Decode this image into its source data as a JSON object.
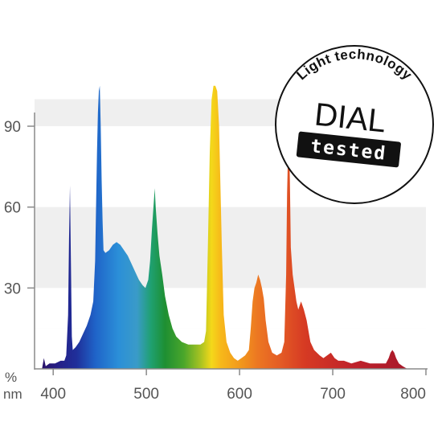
{
  "chart_data": {
    "type": "area",
    "title": "",
    "xlabel": "nm",
    "ylabel": "%",
    "xlim": [
      380,
      800
    ],
    "ylim": [
      0,
      107
    ],
    "x_ticks": [
      400,
      500,
      600,
      700,
      800
    ],
    "y_ticks": [
      30,
      60,
      90
    ],
    "grid": "alternating horizontal bands",
    "color_fill": "wavelength spectrum (violet to red)",
    "series": [
      {
        "points": [
          [
            388,
            0
          ],
          [
            390,
            4
          ],
          [
            392,
            1
          ],
          [
            396,
            2
          ],
          [
            402,
            2
          ],
          [
            408,
            3
          ],
          [
            412,
            3
          ],
          [
            414,
            5
          ],
          [
            416,
            20
          ],
          [
            417,
            48
          ],
          [
            418,
            68
          ],
          [
            419,
            40
          ],
          [
            420,
            12
          ],
          [
            421,
            7
          ],
          [
            424,
            8
          ],
          [
            428,
            10
          ],
          [
            432,
            13
          ],
          [
            436,
            16
          ],
          [
            440,
            20
          ],
          [
            443,
            25
          ],
          [
            445,
            40
          ],
          [
            446,
            60
          ],
          [
            447,
            80
          ],
          [
            448,
            95
          ],
          [
            449,
            103
          ],
          [
            450,
            105
          ],
          [
            451,
            90
          ],
          [
            452,
            70
          ],
          [
            453,
            55
          ],
          [
            454,
            44
          ],
          [
            456,
            43
          ],
          [
            460,
            44
          ],
          [
            464,
            46
          ],
          [
            468,
            47
          ],
          [
            472,
            46
          ],
          [
            476,
            44
          ],
          [
            480,
            42
          ],
          [
            484,
            39
          ],
          [
            488,
            36
          ],
          [
            492,
            33
          ],
          [
            496,
            31
          ],
          [
            499,
            30
          ],
          [
            502,
            33
          ],
          [
            504,
            40
          ],
          [
            506,
            52
          ],
          [
            508,
            62
          ],
          [
            509,
            67
          ],
          [
            510,
            60
          ],
          [
            512,
            50
          ],
          [
            514,
            42
          ],
          [
            517,
            35
          ],
          [
            520,
            27
          ],
          [
            524,
            20
          ],
          [
            528,
            15
          ],
          [
            532,
            12
          ],
          [
            538,
            10
          ],
          [
            545,
            9
          ],
          [
            552,
            9
          ],
          [
            558,
            9
          ],
          [
            562,
            10
          ],
          [
            564,
            14
          ],
          [
            566,
            45
          ],
          [
            568,
            80
          ],
          [
            570,
            100
          ],
          [
            572,
            105
          ],
          [
            574,
            105
          ],
          [
            576,
            103
          ],
          [
            578,
            90
          ],
          [
            579,
            75
          ],
          [
            581,
            45
          ],
          [
            583,
            20
          ],
          [
            586,
            10
          ],
          [
            590,
            6
          ],
          [
            594,
            4
          ],
          [
            598,
            3
          ],
          [
            602,
            4
          ],
          [
            606,
            5
          ],
          [
            610,
            7
          ],
          [
            612,
            15
          ],
          [
            614,
            25
          ],
          [
            616,
            30
          ],
          [
            618,
            32
          ],
          [
            620,
            35
          ],
          [
            622,
            33
          ],
          [
            624,
            30
          ],
          [
            626,
            26
          ],
          [
            628,
            18
          ],
          [
            631,
            10
          ],
          [
            635,
            6
          ],
          [
            640,
            5
          ],
          [
            645,
            6
          ],
          [
            648,
            10
          ],
          [
            650,
            35
          ],
          [
            651,
            65
          ],
          [
            652,
            80
          ],
          [
            653,
            85
          ],
          [
            654,
            70
          ],
          [
            655,
            45
          ],
          [
            657,
            35
          ],
          [
            659,
            30
          ],
          [
            661,
            25
          ],
          [
            663,
            22
          ],
          [
            666,
            25
          ],
          [
            669,
            22
          ],
          [
            672,
            18
          ],
          [
            676,
            10
          ],
          [
            680,
            7
          ],
          [
            686,
            5
          ],
          [
            690,
            4
          ],
          [
            694,
            5
          ],
          [
            698,
            6
          ],
          [
            702,
            4
          ],
          [
            706,
            3
          ],
          [
            712,
            3
          ],
          [
            720,
            2
          ],
          [
            730,
            3
          ],
          [
            740,
            2
          ],
          [
            750,
            2
          ],
          [
            757,
            2
          ],
          [
            760,
            4
          ],
          [
            762,
            6
          ],
          [
            764,
            7
          ],
          [
            766,
            6
          ],
          [
            768,
            4
          ],
          [
            771,
            2
          ],
          [
            775,
            1
          ],
          [
            780,
            0
          ]
        ]
      }
    ]
  },
  "labels": {
    "y_ticks": [
      "30",
      "60",
      "90"
    ],
    "x_ticks": [
      "400",
      "500",
      "600",
      "700",
      "800"
    ],
    "y_unit": "%",
    "x_unit": "nm"
  },
  "seal": {
    "arc_text": "Light technology",
    "dial": "DIAL",
    "tested": "tested"
  }
}
